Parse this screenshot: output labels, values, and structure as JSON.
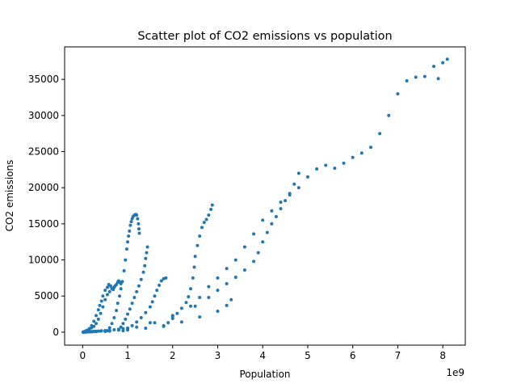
{
  "chart_data": {
    "type": "scatter",
    "title": "Scatter plot of CO2 emissions vs population",
    "xlabel": "Population",
    "ylabel": "CO2 emissions",
    "x_multiplier_label": "1e9",
    "xlim": [
      -0.4,
      8.5
    ],
    "ylim": [
      -1800,
      39500
    ],
    "x_ticks": [
      0,
      1,
      2,
      3,
      4,
      5,
      6,
      7,
      8
    ],
    "y_ticks": [
      0,
      5000,
      10000,
      15000,
      20000,
      25000,
      30000,
      35000
    ],
    "x_tick_labels": [
      "0",
      "1",
      "2",
      "3",
      "4",
      "5",
      "6",
      "7",
      "8"
    ],
    "y_tick_labels": [
      "0",
      "5000",
      "10000",
      "15000",
      "20000",
      "25000",
      "30000",
      "35000"
    ],
    "grid": false,
    "marker_color": "#1f77b4",
    "series": [
      {
        "points": [
          [
            0.05,
            100
          ],
          [
            0.1,
            250
          ],
          [
            0.15,
            400
          ],
          [
            0.2,
            600
          ],
          [
            0.25,
            800
          ],
          [
            0.3,
            1200
          ],
          [
            0.35,
            1800
          ],
          [
            0.4,
            2600
          ],
          [
            0.45,
            3500
          ],
          [
            0.5,
            4500
          ],
          [
            0.55,
            5200
          ],
          [
            0.6,
            5600
          ],
          [
            0.65,
            6000
          ],
          [
            0.7,
            6200
          ],
          [
            0.72,
            6400
          ],
          [
            0.75,
            6600
          ],
          [
            0.78,
            6900
          ],
          [
            0.8,
            7100
          ],
          [
            0.82,
            6900
          ],
          [
            0.85,
            6700
          ],
          [
            0.88,
            7000
          ],
          [
            0.02,
            50
          ],
          [
            0.08,
            200
          ],
          [
            0.15,
            500
          ],
          [
            0.2,
            900
          ],
          [
            0.25,
            1500
          ],
          [
            0.3,
            2300
          ],
          [
            0.35,
            3100
          ],
          [
            0.38,
            3700
          ],
          [
            0.42,
            4300
          ],
          [
            0.45,
            5000
          ],
          [
            0.5,
            5800
          ],
          [
            0.55,
            6200
          ],
          [
            0.58,
            6600
          ],
          [
            0.62,
            6400
          ],
          [
            0.65,
            6100
          ],
          [
            0.68,
            5900
          ]
        ]
      },
      {
        "points": [
          [
            0.55,
            200
          ],
          [
            0.6,
            600
          ],
          [
            0.65,
            1200
          ],
          [
            0.7,
            2000
          ],
          [
            0.75,
            3000
          ],
          [
            0.78,
            4000
          ],
          [
            0.82,
            5000
          ],
          [
            0.85,
            6000
          ],
          [
            0.88,
            7000
          ],
          [
            0.92,
            8500
          ],
          [
            0.95,
            10000
          ],
          [
            0.98,
            11500
          ],
          [
            1.0,
            12500
          ],
          [
            1.02,
            13300
          ],
          [
            1.04,
            14000
          ],
          [
            1.06,
            14800
          ],
          [
            1.08,
            15300
          ],
          [
            1.1,
            15700
          ],
          [
            1.12,
            16000
          ],
          [
            1.15,
            16200
          ],
          [
            1.18,
            16300
          ],
          [
            1.2,
            16200
          ],
          [
            1.22,
            15700
          ],
          [
            1.24,
            15000
          ],
          [
            1.25,
            14300
          ],
          [
            1.26,
            13700
          ]
        ]
      },
      {
        "points": [
          [
            0.8,
            300
          ],
          [
            0.85,
            700
          ],
          [
            0.9,
            1200
          ],
          [
            0.95,
            1800
          ],
          [
            1.0,
            2500
          ],
          [
            1.05,
            3200
          ],
          [
            1.1,
            4000
          ],
          [
            1.15,
            4800
          ],
          [
            1.2,
            5600
          ],
          [
            1.25,
            6400
          ],
          [
            1.3,
            7300
          ],
          [
            1.35,
            8300
          ],
          [
            1.38,
            9200
          ],
          [
            1.4,
            10200
          ],
          [
            1.42,
            11000
          ],
          [
            1.44,
            11800
          ]
        ]
      },
      {
        "points": [
          [
            0.9,
            200
          ],
          [
            1.0,
            500
          ],
          [
            1.1,
            900
          ],
          [
            1.2,
            1400
          ],
          [
            1.3,
            2000
          ],
          [
            1.4,
            2700
          ],
          [
            1.5,
            3500
          ],
          [
            1.55,
            4200
          ],
          [
            1.6,
            5000
          ],
          [
            1.65,
            5800
          ],
          [
            1.7,
            6500
          ],
          [
            1.75,
            7100
          ],
          [
            1.8,
            7400
          ],
          [
            1.85,
            7500
          ]
        ]
      },
      {
        "points": [
          [
            1.8,
            800
          ],
          [
            1.9,
            1300
          ],
          [
            2.0,
            1900
          ],
          [
            2.1,
            2600
          ],
          [
            2.2,
            3300
          ],
          [
            2.3,
            4100
          ],
          [
            2.35,
            4900
          ],
          [
            2.4,
            6000
          ],
          [
            2.45,
            7500
          ],
          [
            2.48,
            9000
          ],
          [
            2.5,
            10500
          ],
          [
            2.55,
            12000
          ],
          [
            2.6,
            13300
          ],
          [
            2.65,
            14500
          ],
          [
            2.7,
            15200
          ],
          [
            2.75,
            15600
          ],
          [
            2.8,
            16200
          ],
          [
            2.85,
            17000
          ],
          [
            2.88,
            17600
          ]
        ]
      },
      {
        "points": [
          [
            0.5,
            100
          ],
          [
            1.0,
            500
          ],
          [
            1.5,
            1300
          ],
          [
            2.0,
            2300
          ],
          [
            2.5,
            3600
          ],
          [
            2.8,
            4800
          ],
          [
            3.0,
            5800
          ],
          [
            3.2,
            6700
          ],
          [
            3.4,
            7600
          ],
          [
            3.6,
            8600
          ],
          [
            3.8,
            9800
          ],
          [
            3.9,
            11000
          ],
          [
            4.0,
            12500
          ],
          [
            4.1,
            13800
          ],
          [
            4.2,
            15000
          ],
          [
            4.3,
            16000
          ],
          [
            4.4,
            17100
          ],
          [
            4.5,
            18200
          ],
          [
            4.6,
            19200
          ],
          [
            4.7,
            20500
          ],
          [
            4.8,
            22000
          ]
        ]
      },
      {
        "points": [
          [
            0.3,
            80
          ],
          [
            0.8,
            300
          ],
          [
            1.2,
            700
          ],
          [
            1.6,
            1300
          ],
          [
            2.0,
            2200
          ],
          [
            2.4,
            3600
          ],
          [
            2.6,
            4800
          ],
          [
            2.8,
            6300
          ],
          [
            3.0,
            7500
          ],
          [
            3.2,
            8800
          ],
          [
            3.4,
            10000
          ],
          [
            3.6,
            11800
          ],
          [
            3.8,
            13600
          ],
          [
            4.0,
            15500
          ],
          [
            4.2,
            16800
          ],
          [
            4.4,
            18000
          ],
          [
            4.6,
            19000
          ],
          [
            4.8,
            20000
          ],
          [
            5.0,
            21500
          ],
          [
            5.2,
            22600
          ],
          [
            5.4,
            23100
          ],
          [
            5.6,
            22700
          ],
          [
            5.8,
            23400
          ],
          [
            6.0,
            24200
          ],
          [
            6.2,
            24800
          ],
          [
            6.4,
            25600
          ],
          [
            6.6,
            27500
          ],
          [
            6.8,
            30000
          ],
          [
            7.0,
            33000
          ],
          [
            7.2,
            34800
          ],
          [
            7.4,
            35300
          ],
          [
            7.6,
            35400
          ],
          [
            7.8,
            36800
          ],
          [
            7.9,
            35100
          ],
          [
            8.0,
            37300
          ],
          [
            8.1,
            37800
          ]
        ]
      },
      {
        "points": [
          [
            0.2,
            50
          ],
          [
            0.6,
            150
          ],
          [
            1.0,
            300
          ],
          [
            1.4,
            550
          ],
          [
            1.8,
            900
          ],
          [
            2.2,
            1400
          ],
          [
            2.6,
            2100
          ],
          [
            3.0,
            2900
          ],
          [
            3.2,
            3700
          ],
          [
            3.3,
            4500
          ]
        ]
      },
      {
        "points": [
          [
            0.02,
            10
          ],
          [
            0.05,
            20
          ],
          [
            0.1,
            30
          ],
          [
            0.15,
            50
          ],
          [
            0.2,
            70
          ],
          [
            0.25,
            100
          ],
          [
            0.3,
            120
          ],
          [
            0.4,
            160
          ],
          [
            0.5,
            210
          ],
          [
            0.6,
            260
          ],
          [
            0.7,
            330
          ],
          [
            0.8,
            400
          ],
          [
            0.9,
            480
          ],
          [
            1.0,
            560
          ]
        ]
      },
      {
        "points": [
          [
            0.01,
            5
          ],
          [
            0.03,
            10
          ],
          [
            0.06,
            20
          ],
          [
            0.09,
            30
          ],
          [
            0.12,
            40
          ],
          [
            0.18,
            60
          ],
          [
            0.22,
            80
          ],
          [
            0.28,
            110
          ],
          [
            0.35,
            140
          ],
          [
            0.42,
            180
          ]
        ]
      }
    ]
  }
}
